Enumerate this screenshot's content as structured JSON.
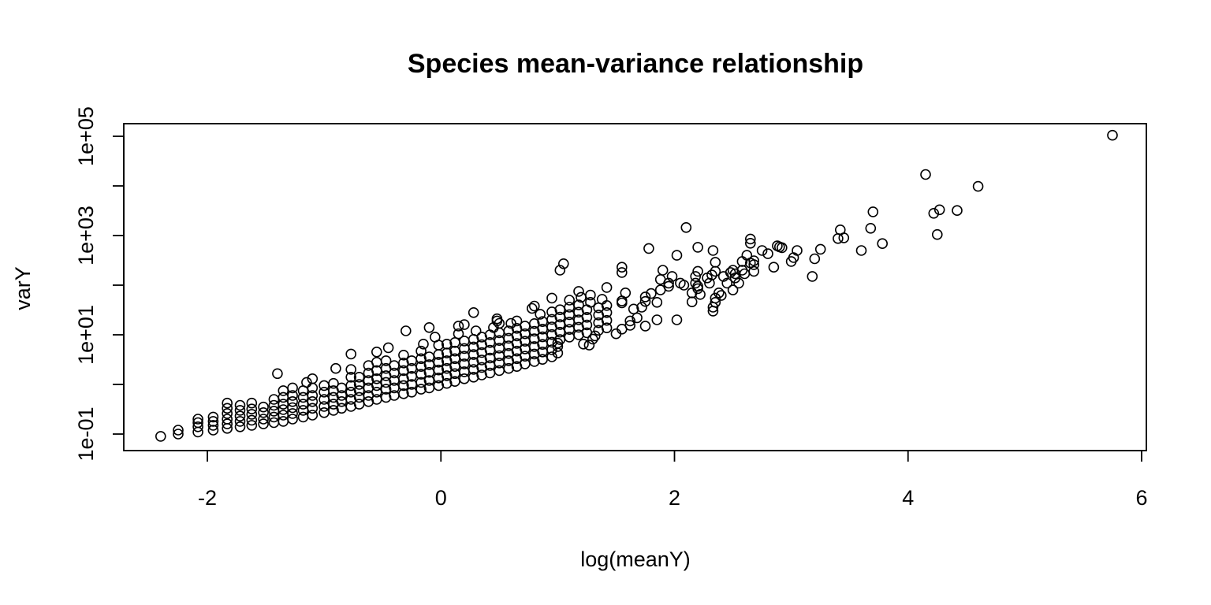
{
  "chart_data": {
    "type": "scatter",
    "title": "Species mean-variance relationship",
    "xlabel": "log(meanY)",
    "ylabel": "varY",
    "xlim": [
      -2.8,
      6.05
    ],
    "ylim": [
      0.05,
      140000
    ],
    "y_log_scale": true,
    "grid": false,
    "legend": "none",
    "marker": "open-circle",
    "x_ticks": [
      {
        "value": -2,
        "label": "-2"
      },
      {
        "value": 0,
        "label": "0"
      },
      {
        "value": 2,
        "label": "2"
      },
      {
        "value": 4,
        "label": "4"
      },
      {
        "value": 6,
        "label": "6"
      }
    ],
    "y_ticks": [
      {
        "value": 0.1,
        "label": "1e-01"
      },
      {
        "value": 1,
        "label": ""
      },
      {
        "value": 10,
        "label": "1e+01"
      },
      {
        "value": 100,
        "label": ""
      },
      {
        "value": 1000,
        "label": "1e+03"
      },
      {
        "value": 10000,
        "label": ""
      },
      {
        "value": 100000,
        "label": "1e+05"
      }
    ],
    "points": [
      [
        -2.4,
        0.09
      ],
      [
        -2.25,
        0.1
      ],
      [
        -2.25,
        0.12
      ],
      [
        -2.08,
        0.11
      ],
      [
        -2.08,
        0.14
      ],
      [
        -2.08,
        0.17
      ],
      [
        -2.08,
        0.2
      ],
      [
        -1.95,
        0.12
      ],
      [
        -1.95,
        0.15
      ],
      [
        -1.95,
        0.18
      ],
      [
        -1.95,
        0.22
      ],
      [
        -1.83,
        0.13
      ],
      [
        -1.83,
        0.16
      ],
      [
        -1.83,
        0.2
      ],
      [
        -1.83,
        0.26
      ],
      [
        -1.83,
        0.33
      ],
      [
        -1.83,
        0.42
      ],
      [
        -1.72,
        0.14
      ],
      [
        -1.72,
        0.18
      ],
      [
        -1.72,
        0.23
      ],
      [
        -1.72,
        0.3
      ],
      [
        -1.72,
        0.38
      ],
      [
        -1.62,
        0.15
      ],
      [
        -1.62,
        0.19
      ],
      [
        -1.62,
        0.25
      ],
      [
        -1.62,
        0.32
      ],
      [
        -1.62,
        0.42
      ],
      [
        -1.52,
        0.16
      ],
      [
        -1.52,
        0.2
      ],
      [
        -1.52,
        0.27
      ],
      [
        -1.52,
        0.35
      ],
      [
        -1.43,
        0.17
      ],
      [
        -1.43,
        0.22
      ],
      [
        -1.43,
        0.29
      ],
      [
        -1.43,
        0.38
      ],
      [
        -1.43,
        0.5
      ],
      [
        -1.35,
        0.18
      ],
      [
        -1.35,
        0.24
      ],
      [
        -1.35,
        0.31
      ],
      [
        -1.35,
        0.4
      ],
      [
        -1.35,
        0.55
      ],
      [
        -1.35,
        0.75
      ],
      [
        -1.4,
        1.65
      ],
      [
        -1.27,
        0.2
      ],
      [
        -1.27,
        0.26
      ],
      [
        -1.27,
        0.34
      ],
      [
        -1.27,
        0.45
      ],
      [
        -1.27,
        0.6
      ],
      [
        -1.27,
        0.85
      ],
      [
        -1.18,
        0.22
      ],
      [
        -1.18,
        0.3
      ],
      [
        -1.18,
        0.4
      ],
      [
        -1.18,
        0.55
      ],
      [
        -1.18,
        0.75
      ],
      [
        -1.1,
        0.24
      ],
      [
        -1.1,
        0.33
      ],
      [
        -1.1,
        0.45
      ],
      [
        -1.1,
        0.6
      ],
      [
        -1.1,
        0.85
      ],
      [
        -1.1,
        1.3
      ],
      [
        -1.15,
        1.1
      ],
      [
        -1.0,
        0.27
      ],
      [
        -1.0,
        0.36
      ],
      [
        -1.0,
        0.5
      ],
      [
        -1.0,
        0.7
      ],
      [
        -1.0,
        0.95
      ],
      [
        -0.92,
        0.3
      ],
      [
        -0.92,
        0.4
      ],
      [
        -0.92,
        0.55
      ],
      [
        -0.92,
        0.75
      ],
      [
        -0.92,
        1.05
      ],
      [
        -0.85,
        0.33
      ],
      [
        -0.85,
        0.45
      ],
      [
        -0.85,
        0.6
      ],
      [
        -0.85,
        0.85
      ],
      [
        -0.9,
        2.1
      ],
      [
        -0.77,
        0.36
      ],
      [
        -0.77,
        0.5
      ],
      [
        -0.77,
        0.7
      ],
      [
        -0.77,
        0.95
      ],
      [
        -0.77,
        1.4
      ],
      [
        -0.77,
        2.0
      ],
      [
        -0.77,
        4.1
      ],
      [
        -0.7,
        0.4
      ],
      [
        -0.7,
        0.55
      ],
      [
        -0.7,
        0.75
      ],
      [
        -0.7,
        1.0
      ],
      [
        -0.7,
        1.4
      ],
      [
        -0.62,
        0.45
      ],
      [
        -0.62,
        0.6
      ],
      [
        -0.62,
        0.85
      ],
      [
        -0.62,
        1.2
      ],
      [
        -0.62,
        1.7
      ],
      [
        -0.62,
        2.4
      ],
      [
        -0.55,
        0.5
      ],
      [
        -0.55,
        0.7
      ],
      [
        -0.55,
        0.95
      ],
      [
        -0.55,
        1.3
      ],
      [
        -0.55,
        1.9
      ],
      [
        -0.55,
        2.8
      ],
      [
        -0.55,
        4.5
      ],
      [
        -0.47,
        0.55
      ],
      [
        -0.47,
        0.8
      ],
      [
        -0.47,
        1.1
      ],
      [
        -0.47,
        1.5
      ],
      [
        -0.47,
        2.1
      ],
      [
        -0.47,
        3.0
      ],
      [
        -0.45,
        5.5
      ],
      [
        -0.4,
        0.6
      ],
      [
        -0.4,
        0.85
      ],
      [
        -0.4,
        1.2
      ],
      [
        -0.4,
        1.7
      ],
      [
        -0.4,
        2.4
      ],
      [
        -0.32,
        0.65
      ],
      [
        -0.32,
        0.95
      ],
      [
        -0.32,
        1.3
      ],
      [
        -0.32,
        1.9
      ],
      [
        -0.32,
        2.7
      ],
      [
        -0.32,
        3.9
      ],
      [
        -0.25,
        0.7
      ],
      [
        -0.25,
        1.0
      ],
      [
        -0.25,
        1.45
      ],
      [
        -0.25,
        2.1
      ],
      [
        -0.25,
        3.0
      ],
      [
        -0.3,
        12.0
      ],
      [
        -0.17,
        0.8
      ],
      [
        -0.17,
        1.1
      ],
      [
        -0.17,
        1.6
      ],
      [
        -0.17,
        2.3
      ],
      [
        -0.17,
        3.3
      ],
      [
        -0.17,
        4.7
      ],
      [
        -0.1,
        0.85
      ],
      [
        -0.1,
        1.2
      ],
      [
        -0.1,
        1.75
      ],
      [
        -0.1,
        2.5
      ],
      [
        -0.1,
        3.6
      ],
      [
        -0.15,
        6.5
      ],
      [
        -0.02,
        0.95
      ],
      [
        -0.02,
        1.35
      ],
      [
        -0.02,
        1.95
      ],
      [
        -0.02,
        2.8
      ],
      [
        -0.02,
        4.0
      ],
      [
        -0.02,
        6.2
      ],
      [
        -0.05,
        9.0
      ],
      [
        -0.1,
        14.0
      ],
      [
        0.05,
        1.05
      ],
      [
        0.05,
        1.5
      ],
      [
        0.05,
        2.1
      ],
      [
        0.05,
        3.0
      ],
      [
        0.05,
        4.3
      ],
      [
        0.05,
        6.5
      ],
      [
        0.12,
        1.15
      ],
      [
        0.12,
        1.65
      ],
      [
        0.12,
        2.3
      ],
      [
        0.12,
        3.3
      ],
      [
        0.12,
        4.7
      ],
      [
        0.12,
        7.0
      ],
      [
        0.15,
        10.5
      ],
      [
        0.15,
        15.0
      ],
      [
        0.2,
        1.3
      ],
      [
        0.2,
        1.8
      ],
      [
        0.2,
        2.6
      ],
      [
        0.2,
        3.7
      ],
      [
        0.2,
        5.3
      ],
      [
        0.2,
        7.5
      ],
      [
        0.2,
        16.0
      ],
      [
        0.28,
        28.0
      ],
      [
        0.28,
        1.4
      ],
      [
        0.28,
        2.0
      ],
      [
        0.28,
        2.8
      ],
      [
        0.28,
        4.0
      ],
      [
        0.28,
        5.7
      ],
      [
        0.28,
        8.1
      ],
      [
        0.3,
        12.0
      ],
      [
        0.35,
        1.55
      ],
      [
        0.35,
        2.2
      ],
      [
        0.35,
        3.1
      ],
      [
        0.35,
        4.4
      ],
      [
        0.35,
        6.3
      ],
      [
        0.35,
        9.0
      ],
      [
        0.42,
        1.7
      ],
      [
        0.42,
        2.4
      ],
      [
        0.42,
        3.4
      ],
      [
        0.42,
        4.9
      ],
      [
        0.42,
        7.0
      ],
      [
        0.42,
        10.0
      ],
      [
        0.45,
        14.0
      ],
      [
        0.48,
        19.0
      ],
      [
        0.5,
        1.9
      ],
      [
        0.5,
        2.7
      ],
      [
        0.5,
        3.8
      ],
      [
        0.5,
        5.4
      ],
      [
        0.5,
        7.7
      ],
      [
        0.5,
        11.0
      ],
      [
        0.5,
        17.0
      ],
      [
        0.48,
        21.0
      ],
      [
        0.58,
        2.1
      ],
      [
        0.58,
        3.0
      ],
      [
        0.58,
        4.2
      ],
      [
        0.58,
        6.0
      ],
      [
        0.58,
        8.5
      ],
      [
        0.58,
        12.0
      ],
      [
        0.6,
        17.0
      ],
      [
        0.65,
        2.3
      ],
      [
        0.65,
        3.3
      ],
      [
        0.65,
        4.7
      ],
      [
        0.65,
        6.7
      ],
      [
        0.65,
        9.5
      ],
      [
        0.65,
        13.5
      ],
      [
        0.65,
        19.0
      ],
      [
        0.72,
        2.6
      ],
      [
        0.72,
        3.7
      ],
      [
        0.72,
        5.2
      ],
      [
        0.72,
        7.4
      ],
      [
        0.72,
        10.5
      ],
      [
        0.72,
        15.0
      ],
      [
        0.8,
        2.9
      ],
      [
        0.8,
        4.1
      ],
      [
        0.8,
        5.8
      ],
      [
        0.8,
        8.3
      ],
      [
        0.8,
        11.8
      ],
      [
        0.8,
        16.8
      ],
      [
        0.78,
        34.0
      ],
      [
        0.8,
        38.0
      ],
      [
        0.87,
        3.2
      ],
      [
        0.87,
        4.5
      ],
      [
        0.87,
        6.4
      ],
      [
        0.87,
        9.1
      ],
      [
        0.87,
        13.0
      ],
      [
        0.87,
        18.5
      ],
      [
        0.85,
        26.0
      ],
      [
        0.95,
        3.6
      ],
      [
        0.95,
        5.0
      ],
      [
        0.95,
        7.1
      ],
      [
        0.95,
        10.1
      ],
      [
        0.95,
        14.4
      ],
      [
        0.95,
        20.5
      ],
      [
        0.95,
        29.0
      ],
      [
        0.95,
        55.0
      ],
      [
        1.0,
        4.3
      ],
      [
        1.0,
        5.8
      ],
      [
        1.0,
        6.8
      ],
      [
        1.02,
        8.0
      ],
      [
        1.02,
        11.3
      ],
      [
        1.02,
        16.0
      ],
      [
        1.02,
        22.8
      ],
      [
        1.02,
        32.0
      ],
      [
        1.02,
        200.0
      ],
      [
        1.05,
        270.0
      ],
      [
        1.1,
        9.0
      ],
      [
        1.1,
        12.8
      ],
      [
        1.1,
        18.0
      ],
      [
        1.1,
        25.5
      ],
      [
        1.1,
        36.0
      ],
      [
        1.1,
        50.0
      ],
      [
        1.18,
        10.0
      ],
      [
        1.18,
        14.2
      ],
      [
        1.18,
        20.0
      ],
      [
        1.18,
        28.5
      ],
      [
        1.18,
        40.0
      ],
      [
        1.2,
        57.0
      ],
      [
        1.18,
        75.0
      ],
      [
        1.22,
        6.5
      ],
      [
        1.27,
        6.2
      ],
      [
        1.3,
        8.2
      ],
      [
        1.32,
        9.5
      ],
      [
        1.25,
        11.0
      ],
      [
        1.25,
        15.8
      ],
      [
        1.25,
        22.5
      ],
      [
        1.25,
        32.0
      ],
      [
        1.28,
        45.0
      ],
      [
        1.28,
        63.0
      ],
      [
        1.35,
        12.3
      ],
      [
        1.35,
        17.5
      ],
      [
        1.35,
        25.0
      ],
      [
        1.35,
        35.0
      ],
      [
        1.38,
        52.0
      ],
      [
        1.42,
        13.8
      ],
      [
        1.42,
        19.5
      ],
      [
        1.42,
        28.0
      ],
      [
        1.42,
        39.0
      ],
      [
        1.42,
        90.0
      ],
      [
        1.5,
        10.5
      ],
      [
        1.55,
        13.0
      ],
      [
        1.55,
        44.0
      ],
      [
        1.55,
        48.0
      ],
      [
        1.55,
        180.0
      ],
      [
        1.55,
        230.0
      ],
      [
        1.58,
        70.0
      ],
      [
        1.62,
        15.5
      ],
      [
        1.62,
        19.0
      ],
      [
        1.65,
        33.0
      ],
      [
        1.68,
        22.0
      ],
      [
        1.72,
        36.0
      ],
      [
        1.75,
        15.0
      ],
      [
        1.75,
        47.0
      ],
      [
        1.75,
        58.0
      ],
      [
        1.78,
        550.0
      ],
      [
        1.8,
        68.0
      ],
      [
        1.85,
        20.0
      ],
      [
        1.85,
        45.0
      ],
      [
        1.88,
        80.0
      ],
      [
        1.88,
        130.0
      ],
      [
        1.9,
        200.0
      ],
      [
        1.95,
        95.0
      ],
      [
        1.95,
        110.0
      ],
      [
        1.98,
        150.0
      ],
      [
        2.02,
        20.0
      ],
      [
        2.02,
        400.0
      ],
      [
        2.05,
        110.0
      ],
      [
        2.08,
        100.0
      ],
      [
        2.1,
        1450.0
      ],
      [
        2.15,
        46.0
      ],
      [
        2.15,
        70.0
      ],
      [
        2.18,
        110.0
      ],
      [
        2.18,
        150.0
      ],
      [
        2.2,
        190.0
      ],
      [
        2.2,
        85.0
      ],
      [
        2.22,
        65.0
      ],
      [
        2.2,
        95.0
      ],
      [
        2.2,
        580.0
      ],
      [
        2.28,
        140.0
      ],
      [
        2.3,
        110.0
      ],
      [
        2.33,
        30.0
      ],
      [
        2.33,
        36.0
      ],
      [
        2.35,
        45.0
      ],
      [
        2.35,
        55.0
      ],
      [
        2.38,
        70.0
      ],
      [
        2.4,
        62.0
      ],
      [
        2.32,
        160.0
      ],
      [
        2.35,
        190.0
      ],
      [
        2.35,
        290.0
      ],
      [
        2.33,
        500.0
      ],
      [
        2.42,
        150.0
      ],
      [
        2.45,
        110.0
      ],
      [
        2.48,
        180.0
      ],
      [
        2.5,
        200.0
      ],
      [
        2.5,
        80.0
      ],
      [
        2.52,
        140.0
      ],
      [
        2.52,
        170.0
      ],
      [
        2.55,
        110.0
      ],
      [
        2.58,
        200.0
      ],
      [
        2.58,
        300.0
      ],
      [
        2.6,
        170.0
      ],
      [
        2.62,
        400.0
      ],
      [
        2.65,
        280.0
      ],
      [
        2.68,
        260.0
      ],
      [
        2.68,
        190.0
      ],
      [
        2.68,
        310.0
      ],
      [
        2.65,
        700.0
      ],
      [
        2.65,
        850.0
      ],
      [
        2.75,
        500.0
      ],
      [
        2.8,
        430.0
      ],
      [
        2.85,
        230.0
      ],
      [
        2.88,
        620.0
      ],
      [
        2.9,
        590.0
      ],
      [
        2.92,
        570.0
      ],
      [
        3.0,
        300.0
      ],
      [
        3.02,
        360.0
      ],
      [
        3.05,
        500.0
      ],
      [
        3.18,
        150.0
      ],
      [
        3.2,
        340.0
      ],
      [
        3.25,
        530.0
      ],
      [
        3.4,
        870.0
      ],
      [
        3.42,
        1300.0
      ],
      [
        3.45,
        900.0
      ],
      [
        3.6,
        500.0
      ],
      [
        3.68,
        1400.0
      ],
      [
        3.7,
        3000.0
      ],
      [
        3.78,
        690.0
      ],
      [
        4.15,
        17000.0
      ],
      [
        4.22,
        2800.0
      ],
      [
        4.25,
        1050.0
      ],
      [
        4.27,
        3300.0
      ],
      [
        4.42,
        3200.0
      ],
      [
        4.6,
        9800.0
      ],
      [
        5.75,
        105000.0
      ]
    ]
  }
}
